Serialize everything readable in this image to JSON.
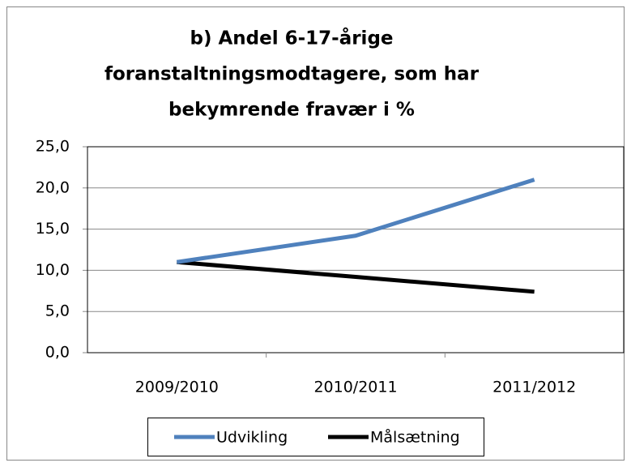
{
  "chart_data": {
    "type": "line",
    "title": [
      "b)  Andel 6-17-årige",
      "foranstaltningsmodtagere, som har",
      "bekymrende fravær i %"
    ],
    "categories": [
      "2009/2010",
      "2010/2011",
      "2011/2012"
    ],
    "series": [
      {
        "name": "Udvikling",
        "color": "#4f81bd",
        "values": [
          11.0,
          14.2,
          21.0
        ]
      },
      {
        "name": "Målsætning",
        "color": "#000000",
        "values": [
          11.0,
          9.2,
          7.4
        ]
      }
    ],
    "ylim": [
      0,
      25
    ],
    "yticks": [
      {
        "value": 0,
        "label": "0,0"
      },
      {
        "value": 5,
        "label": "5,0"
      },
      {
        "value": 10,
        "label": "10,0"
      },
      {
        "value": 15,
        "label": "15,0"
      },
      {
        "value": 20,
        "label": "20,0"
      },
      {
        "value": 25,
        "label": "25,0"
      }
    ],
    "grid": true,
    "legend": "bottom"
  }
}
